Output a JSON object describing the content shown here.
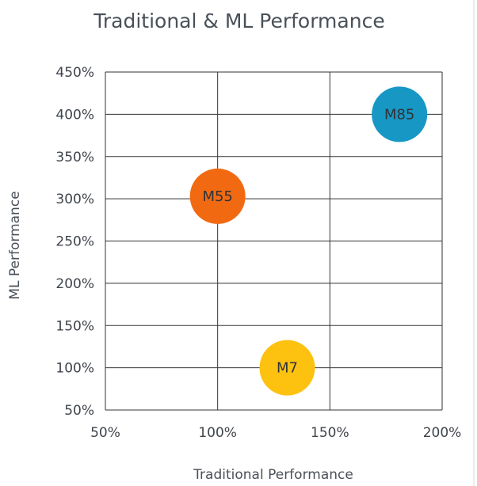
{
  "chart_data": {
    "type": "scatter",
    "title": "Traditional & ML Performance",
    "xlabel": "Traditional Performance",
    "ylabel": "ML Performance",
    "xlim": [
      0.5,
      2.0
    ],
    "ylim": [
      0.5,
      4.5
    ],
    "x_ticks": [
      0.5,
      1.0,
      1.5,
      2.0
    ],
    "y_ticks": [
      0.5,
      1.0,
      1.5,
      2.0,
      2.5,
      3.0,
      3.5,
      4.0,
      4.5
    ],
    "tick_format": "percent",
    "grid": true,
    "legend": "none",
    "points": [
      {
        "label": "M55",
        "x": 1.0,
        "y": 3.03,
        "color": "#f16a12"
      },
      {
        "label": "M85",
        "x": 1.81,
        "y": 4.0,
        "color": "#1797c4"
      },
      {
        "label": "M7",
        "x": 1.31,
        "y": 1.0,
        "color": "#fdc110"
      }
    ]
  }
}
